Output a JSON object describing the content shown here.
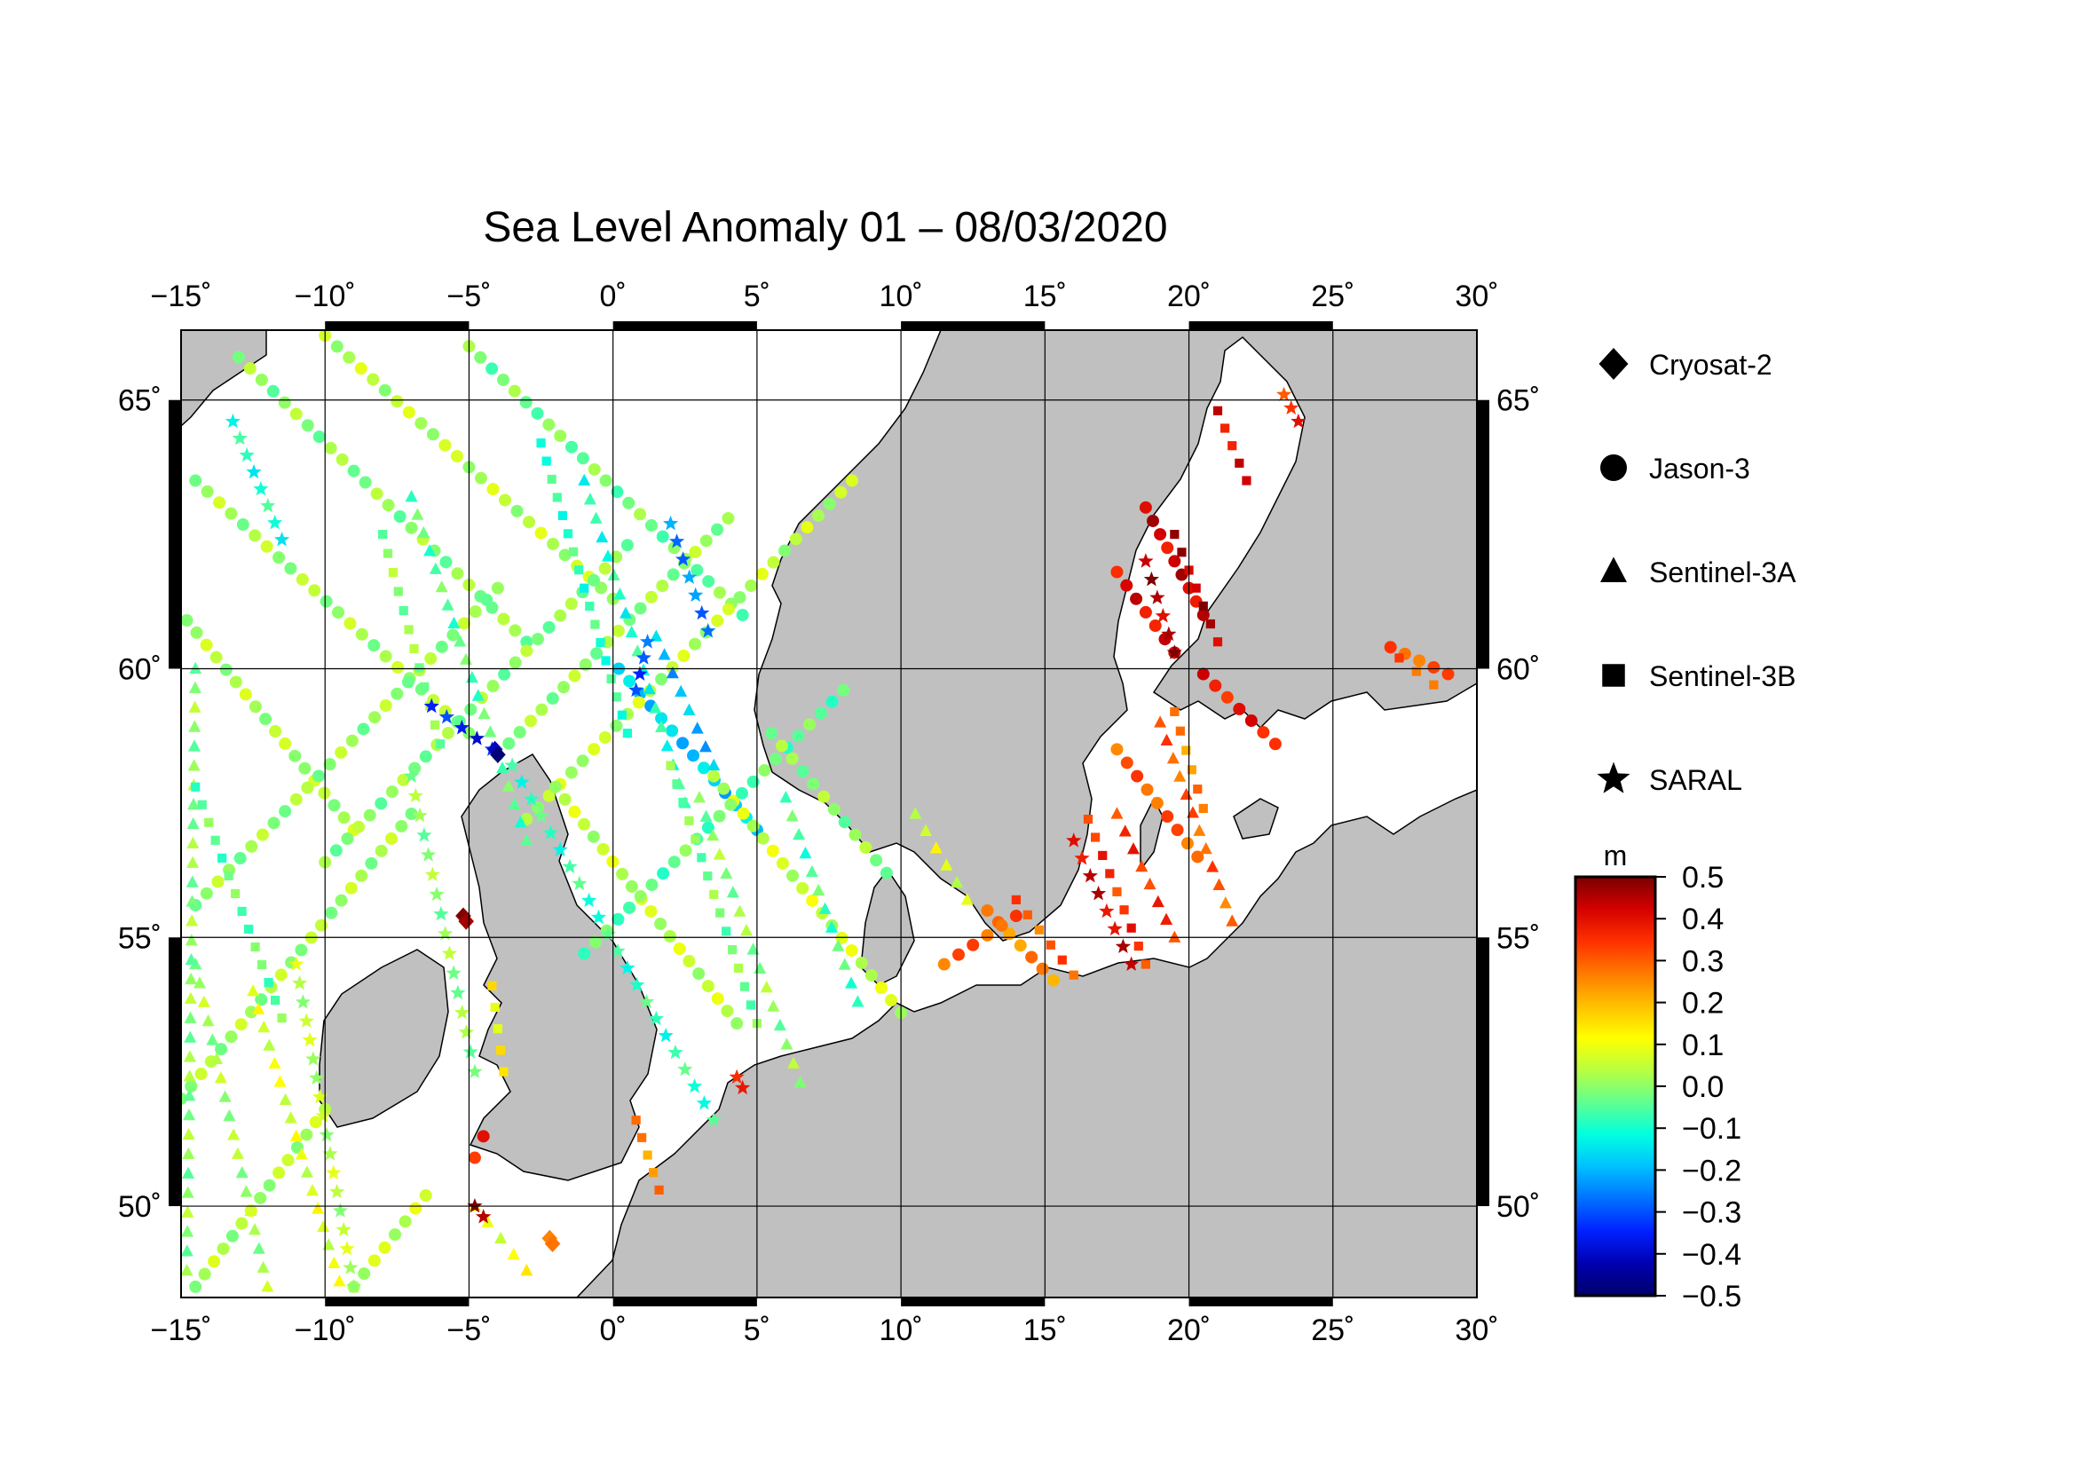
{
  "title": "Sea Level Anomaly 01 – 08/03/2020",
  "map": {
    "lon_range": [
      -15,
      30
    ],
    "lat_range": [
      48.3,
      66.3
    ],
    "lon_ticks": [
      -15,
      -10,
      -5,
      0,
      5,
      10,
      15,
      20,
      25,
      30
    ],
    "lat_ticks": [
      50,
      55,
      60,
      65
    ],
    "lon_tick_labels": [
      "−15˚",
      "−10˚",
      "−5˚",
      "0˚",
      "5˚",
      "10˚",
      "15˚",
      "20˚",
      "25˚",
      "30˚"
    ],
    "lat_tick_labels": [
      "50˚",
      "55˚",
      "60˚",
      "65˚"
    ],
    "grid": true,
    "land_color": "#c0c0c0",
    "sea_color": "#ffffff"
  },
  "legend": {
    "placement": "right",
    "items": [
      {
        "label": "Cryosat-2",
        "symbol": "diamond"
      },
      {
        "label": "Jason-3",
        "symbol": "circle"
      },
      {
        "label": "Sentinel-3A",
        "symbol": "triangle"
      },
      {
        "label": "Sentinel-3B",
        "symbol": "square"
      },
      {
        "label": "SARAL",
        "symbol": "star"
      }
    ]
  },
  "colorbar": {
    "unit": "m",
    "range": [
      -0.5,
      0.5
    ],
    "tick_labels": [
      "0.5",
      "0.4",
      "0.3",
      "0.2",
      "0.1",
      "0.0",
      "−0.1",
      "−0.2",
      "−0.3",
      "−0.4",
      "−0.5"
    ],
    "colors": [
      "#7a0000",
      "#d40000",
      "#ff3000",
      "#ff7a00",
      "#ffc000",
      "#ffff00",
      "#b8ff40",
      "#60ff90",
      "#00ffe0",
      "#00c0ff",
      "#0070ff",
      "#0020ff",
      "#0000b0",
      "#00006a"
    ]
  },
  "chart_data": {
    "type": "scatter",
    "x_label": "",
    "y_label": "",
    "series": [
      {
        "symbol": "circle",
        "tracks": [
          {
            "lon": [
              -14.5,
              -5
            ],
            "lat": [
              63.5,
              58.8
            ],
            "sla": 0.02
          },
          {
            "lon": [
              -13,
              -3
            ],
            "lat": [
              65.8,
              60.5
            ],
            "sla": 0.0
          },
          {
            "lon": [
              -10,
              0
            ],
            "lat": [
              66.2,
              61.3
            ],
            "sla": 0.04
          },
          {
            "lon": [
              -5,
              4.5
            ],
            "lat": [
              66,
              61
            ],
            "sla": -0.02
          },
          {
            "lon": [
              -14.8,
              -9
            ],
            "lat": [
              60.9,
              57
            ],
            "sla": 0.03
          },
          {
            "lon": [
              -14.5,
              -4
            ],
            "lat": [
              55.6,
              61.5
            ],
            "sla": 0.01
          },
          {
            "lon": [
              -10,
              0.5
            ],
            "lat": [
              56.4,
              62.3
            ],
            "sla": 0.0
          },
          {
            "lon": [
              -4,
              4
            ],
            "lat": [
              58.4,
              62.8
            ],
            "sla": 0.01
          },
          {
            "lon": [
              0.2,
              5
            ],
            "lat": [
              60,
              57
            ],
            "sla": -0.18
          },
          {
            "lon": [
              -3,
              8.3
            ],
            "lat": [
              57.2,
              63.5
            ],
            "sla": 0.04
          },
          {
            "lon": [
              -2,
              4.3
            ],
            "lat": [
              57.8,
              53.4
            ],
            "sla": 0.05
          },
          {
            "lon": [
              3.5,
              10
            ],
            "lat": [
              58,
              53.6
            ],
            "sla": 0.06
          },
          {
            "lon": [
              -1,
              8
            ],
            "lat": [
              54.7,
              59.6
            ],
            "sla": -0.04
          },
          {
            "lon": [
              5.5,
              9.5
            ],
            "lat": [
              58.8,
              56.2
            ],
            "sla": 0.0
          },
          {
            "lon": [
              -15,
              -7
            ],
            "lat": [
              52,
              57.3
            ],
            "sla": 0.02
          },
          {
            "lon": [
              -14.5,
              -10
            ],
            "lat": [
              48.5,
              51.8
            ],
            "sla": 0.03
          },
          {
            "lon": [
              -9,
              -6.5
            ],
            "lat": [
              48.5,
              50.2
            ],
            "sla": 0.05
          },
          {
            "lon": [
              13,
              15.3
            ],
            "lat": [
              55.5,
              54.2
            ],
            "sla": 0.25
          },
          {
            "lon": [
              17.5,
              20.3
            ],
            "lat": [
              58.5,
              56.5
            ],
            "sla": 0.3
          },
          {
            "lon": [
              20.5,
              23
            ],
            "lat": [
              59.9,
              58.6
            ],
            "sla": 0.38
          },
          {
            "lon": [
              18.5,
              20.5
            ],
            "lat": [
              63,
              61
            ],
            "sla": 0.42
          },
          {
            "lon": [
              17.5,
              19.5
            ],
            "lat": [
              61.8,
              60.3
            ],
            "sla": 0.4
          },
          {
            "lon": [
              27,
              29
            ],
            "lat": [
              60.4,
              59.9
            ],
            "sla": 0.3
          },
          {
            "lon": [
              11.5,
              14
            ],
            "lat": [
              54.5,
              55.4
            ],
            "sla": 0.3
          },
          {
            "lon": [
              -4.5,
              -4.8
            ],
            "lat": [
              51.3,
              50.9
            ],
            "sla": 0.35
          }
        ]
      },
      {
        "symbol": "triangle",
        "tracks": [
          {
            "lon": [
              -14.5,
              -12
            ],
            "lat": [
              54.5,
              48.5
            ],
            "sla": 0.02
          },
          {
            "lon": [
              -12.5,
              -9.5
            ],
            "lat": [
              54,
              48.6
            ],
            "sla": 0.08
          },
          {
            "lon": [
              -7,
              -3
            ],
            "lat": [
              63.2,
              56.8
            ],
            "sla": -0.05
          },
          {
            "lon": [
              -1,
              2.5
            ],
            "lat": [
              63.5,
              57.5
            ],
            "sla": -0.1
          },
          {
            "lon": [
              1.5,
              3.5
            ],
            "lat": [
              60.6,
              58.2
            ],
            "sla": -0.2
          },
          {
            "lon": [
              3,
              6.5
            ],
            "lat": [
              57.6,
              52.3
            ],
            "sla": 0.0
          },
          {
            "lon": [
              6,
              8.5
            ],
            "lat": [
              57.6,
              53.8
            ],
            "sla": -0.06
          },
          {
            "lon": [
              -14.5,
              -14.8
            ],
            "lat": [
              60,
              48.8
            ],
            "sla": 0.0
          },
          {
            "lon": [
              17.5,
              19.5
            ],
            "lat": [
              57.3,
              55
            ],
            "sla": 0.35
          },
          {
            "lon": [
              19,
              21.5
            ],
            "lat": [
              59,
              55.3
            ],
            "sla": 0.3
          },
          {
            "lon": [
              10.5,
              12.3
            ],
            "lat": [
              57.3,
              55.7
            ],
            "sla": 0.08
          },
          {
            "lon": [
              -4.8,
              -3
            ],
            "lat": [
              50,
              48.8
            ],
            "sla": 0.1
          }
        ]
      },
      {
        "symbol": "square",
        "tracks": [
          {
            "lon": [
              -14.5,
              -11.5
            ],
            "lat": [
              57.8,
              53.5
            ],
            "sla": -0.04
          },
          {
            "lon": [
              -8,
              -6
            ],
            "lat": [
              62.5,
              58.6
            ],
            "sla": 0.0
          },
          {
            "lon": [
              -2.5,
              0.5
            ],
            "lat": [
              64.2,
              58.8
            ],
            "sla": -0.08
          },
          {
            "lon": [
              2,
              5
            ],
            "lat": [
              58.2,
              53.4
            ],
            "sla": -0.02
          },
          {
            "lon": [
              19.5,
              20.5
            ],
            "lat": [
              59.2,
              57.4
            ],
            "sla": 0.25
          },
          {
            "lon": [
              16.5,
              18.5
            ],
            "lat": [
              57.2,
              54.5
            ],
            "sla": 0.35
          },
          {
            "lon": [
              21,
              22
            ],
            "lat": [
              64.8,
              63.5
            ],
            "sla": 0.4
          },
          {
            "lon": [
              19.5,
              21
            ],
            "lat": [
              62.5,
              60.5
            ],
            "sla": 0.45
          },
          {
            "lon": [
              14,
              16
            ],
            "lat": [
              55.7,
              54.3
            ],
            "sla": 0.3
          },
          {
            "lon": [
              0.8,
              1.6
            ],
            "lat": [
              51.6,
              50.3
            ],
            "sla": 0.25
          },
          {
            "lon": [
              -4.2,
              -3.8
            ],
            "lat": [
              54.1,
              52.5
            ],
            "sla": 0.12
          },
          {
            "lon": [
              27.3,
              28.5
            ],
            "lat": [
              60.2,
              59.7
            ],
            "sla": 0.3
          }
        ]
      },
      {
        "symbol": "star",
        "tracks": [
          {
            "lon": [
              -13.2,
              -11.5
            ],
            "lat": [
              64.6,
              62.4
            ],
            "sla": -0.1
          },
          {
            "lon": [
              2,
              3.3
            ],
            "lat": [
              62.7,
              60.7
            ],
            "sla": -0.25
          },
          {
            "lon": [
              1.2,
              0.8
            ],
            "lat": [
              60.5,
              59.6
            ],
            "sla": -0.3
          },
          {
            "lon": [
              -6.3,
              -4.2
            ],
            "lat": [
              59.3,
              58.5
            ],
            "sla": -0.35
          },
          {
            "lon": [
              -3.5,
              3.5
            ],
            "lat": [
              58.2,
              51.6
            ],
            "sla": -0.08
          },
          {
            "lon": [
              -7,
              -4.8
            ],
            "lat": [
              58,
              52.5
            ],
            "sla": 0.0
          },
          {
            "lon": [
              -11,
              -9
            ],
            "lat": [
              54.5,
              48.5
            ],
            "sla": 0.04
          },
          {
            "lon": [
              16,
              18
            ],
            "lat": [
              56.8,
              54.5
            ],
            "sla": 0.42
          },
          {
            "lon": [
              18.5,
              19.5
            ],
            "lat": [
              62,
              60.3
            ],
            "sla": 0.45
          },
          {
            "lon": [
              23.3,
              23.8
            ],
            "lat": [
              65.1,
              64.6
            ],
            "sla": 0.35
          },
          {
            "lon": [
              4.3,
              4.5
            ],
            "lat": [
              52.4,
              52.2
            ],
            "sla": 0.4
          },
          {
            "lon": [
              -4.8,
              -4.5
            ],
            "lat": [
              50,
              49.8
            ],
            "sla": 0.45
          }
        ]
      },
      {
        "symbol": "diamond",
        "tracks": [
          {
            "lon": [
              -4.1,
              -4.0
            ],
            "lat": [
              58.5,
              58.4
            ],
            "sla": -0.45
          },
          {
            "lon": [
              -5.2,
              -5.1
            ],
            "lat": [
              55.4,
              55.3
            ],
            "sla": 0.45
          },
          {
            "lon": [
              -2.2,
              -2.1
            ],
            "lat": [
              49.4,
              49.3
            ],
            "sla": 0.3
          }
        ]
      }
    ]
  }
}
